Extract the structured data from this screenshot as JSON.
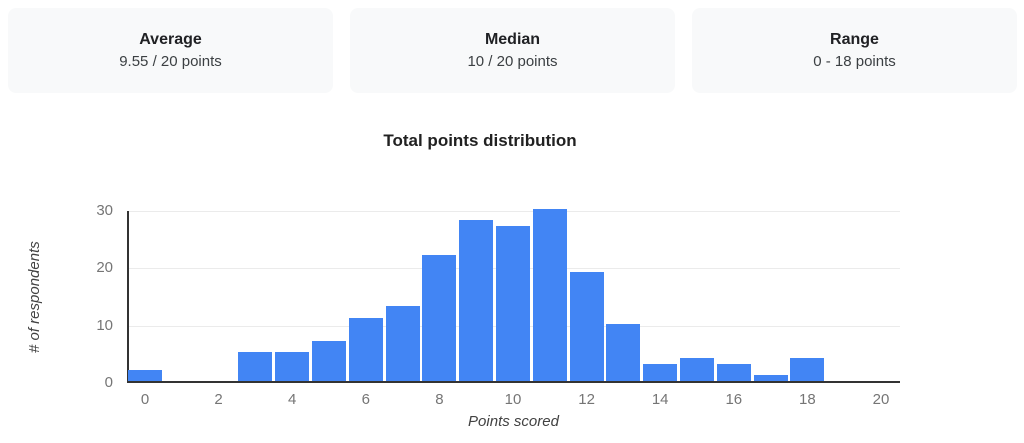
{
  "stats_cards": [
    {
      "label": "Average",
      "value": "9.55 / 20 points"
    },
    {
      "label": "Median",
      "value": "10 / 20 points"
    },
    {
      "label": "Range",
      "value": "0 - 18 points"
    }
  ],
  "chart_data": {
    "type": "bar",
    "title": "Total points distribution",
    "xlabel": "Points scored",
    "ylabel": "# of respondents",
    "x": [
      0,
      1,
      2,
      3,
      4,
      5,
      6,
      7,
      8,
      9,
      10,
      11,
      12,
      13,
      14,
      15,
      16,
      17,
      18,
      19,
      20
    ],
    "values": [
      2,
      0,
      0,
      5,
      5,
      7,
      11,
      13,
      22,
      28,
      27,
      30,
      19,
      10,
      3,
      4,
      3,
      1,
      4,
      0,
      0
    ],
    "x_tick_values": [
      0,
      2,
      4,
      6,
      8,
      10,
      12,
      14,
      16,
      18,
      20
    ],
    "y_tick_values": [
      0,
      10,
      20,
      30
    ],
    "ylim": [
      0,
      30
    ],
    "grid": true,
    "legend": "none",
    "bar_color": "#4285f4",
    "gridline_color": "#ebebeb",
    "axis_line_color": "#333333",
    "tick_label_color": "#757575",
    "card_background_color": "#f8f9fa"
  }
}
